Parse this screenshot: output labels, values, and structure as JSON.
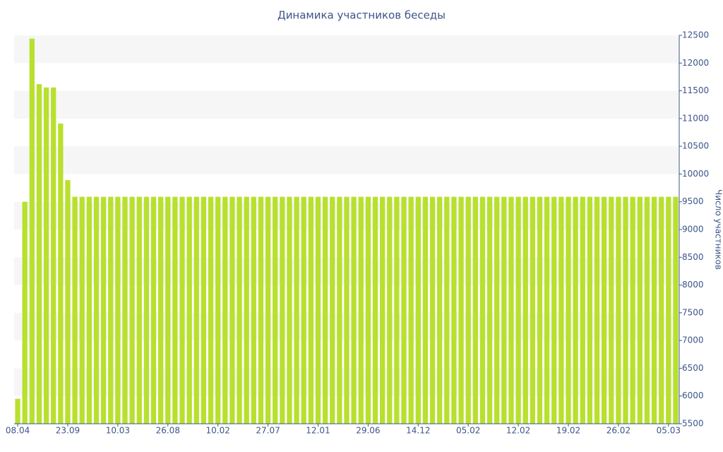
{
  "chart_data": {
    "type": "bar",
    "title": "Динамика участников беседы",
    "y_label": "Число участников",
    "categories": [
      "08.04",
      null,
      null,
      null,
      null,
      null,
      null,
      "23.09",
      null,
      null,
      null,
      null,
      null,
      null,
      "10.03",
      null,
      null,
      null,
      null,
      null,
      null,
      "26.08",
      null,
      null,
      null,
      null,
      null,
      null,
      "10.02",
      null,
      null,
      null,
      null,
      null,
      null,
      "27.07",
      null,
      null,
      null,
      null,
      null,
      null,
      "12.01",
      null,
      null,
      null,
      null,
      null,
      null,
      "29.06",
      null,
      null,
      null,
      null,
      null,
      null,
      "14.12",
      null,
      null,
      null,
      null,
      null,
      null,
      "05.02",
      null,
      null,
      null,
      null,
      null,
      null,
      "12.02",
      null,
      null,
      null,
      null,
      null,
      null,
      "19.02",
      null,
      null,
      null,
      null,
      null,
      null,
      "26.02",
      null,
      null,
      null,
      null,
      null,
      null,
      "05.03",
      null
    ],
    "values": [
      5950,
      9500,
      12440,
      11620,
      11560,
      11560,
      10910,
      9890,
      9590,
      9590,
      9590,
      9590,
      9590,
      9590,
      9590,
      9590,
      9590,
      9590,
      9590,
      9590,
      9590,
      9590,
      9590,
      9590,
      9590,
      9590,
      9590,
      9590,
      9590,
      9590,
      9590,
      9590,
      9590,
      9590,
      9590,
      9590,
      9590,
      9590,
      9590,
      9590,
      9590,
      9590,
      9590,
      9590,
      9590,
      9590,
      9590,
      9590,
      9590,
      9590,
      9590,
      9590,
      9590,
      9590,
      9590,
      9590,
      9590,
      9590,
      9590,
      9590,
      9590,
      9590,
      9590,
      9590,
      9590,
      9590,
      9590,
      9590,
      9590,
      9590,
      9590,
      9590,
      9590,
      9590,
      9590,
      9590,
      9590,
      9590,
      9590,
      9590,
      9590,
      9590,
      9590,
      9590,
      9590,
      9590,
      9590,
      9590,
      9590,
      9590,
      9590,
      9590,
      9590
    ],
    "color": "#b8e02e",
    "ylim": [
      5500,
      12500
    ],
    "yticks": [
      5500,
      6000,
      6500,
      7000,
      7500,
      8000,
      8500,
      9000,
      9500,
      10000,
      10500,
      11000,
      11500,
      12000,
      12500
    ],
    "grid": true,
    "y_axis_side": "right"
  }
}
